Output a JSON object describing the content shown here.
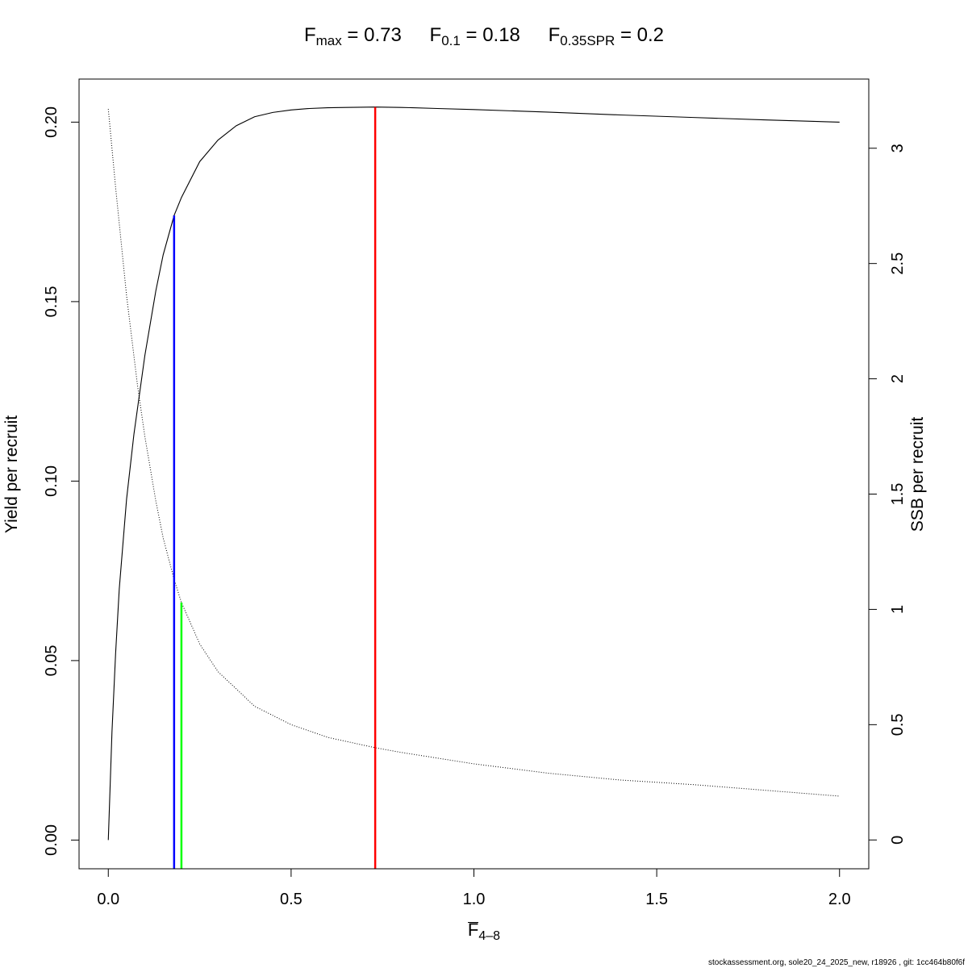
{
  "title": {
    "terms": [
      {
        "symbol": "F",
        "sub": "max",
        "value": "0.73"
      },
      {
        "symbol": "F",
        "sub": "0.1",
        "value": "0.18"
      },
      {
        "symbol": "F",
        "sub": "0.35SPR",
        "value": "0.2"
      }
    ]
  },
  "footer": "stockassessment.org, sole20_24_2025_new, r18926 , git: 1cc464b80f6f",
  "chart_data": {
    "type": "line",
    "xlabel": {
      "symbol": "F",
      "sub": "4–8"
    },
    "ylabel_left": "Yield per recruit",
    "ylabel_right": "SSB per recruit",
    "xlim": [
      -0.08,
      2.08
    ],
    "ylim_left": [
      -0.008,
      0.212
    ],
    "ylim_right": [
      -0.125,
      3.3
    ],
    "x_ticks": [
      "0.0",
      "0.5",
      "1.0",
      "1.5",
      "2.0"
    ],
    "y_left_ticks": [
      "0.00",
      "0.05",
      "0.10",
      "0.15",
      "0.20"
    ],
    "y_right_ticks": [
      "0",
      "0.5",
      "1",
      "1.5",
      "2",
      "2.5",
      "3"
    ],
    "series": [
      {
        "axis": "left",
        "style": "solid",
        "color": "#000000",
        "x": [
          0,
          0.01,
          0.02,
          0.03,
          0.05,
          0.07,
          0.1,
          0.13,
          0.15,
          0.18,
          0.2,
          0.25,
          0.3,
          0.35,
          0.4,
          0.45,
          0.5,
          0.55,
          0.6,
          0.65,
          0.73,
          0.8,
          0.9,
          1.0,
          1.2,
          1.4,
          1.6,
          1.8,
          2.0
        ],
        "y": [
          0.0,
          0.03,
          0.052,
          0.07,
          0.095,
          0.113,
          0.135,
          0.153,
          0.163,
          0.174,
          0.179,
          0.189,
          0.195,
          0.199,
          0.2015,
          0.2027,
          0.2034,
          0.2038,
          0.204,
          0.2041,
          0.2042,
          0.2041,
          0.2038,
          0.2035,
          0.2028,
          0.202,
          0.2013,
          0.2006,
          0.2
        ]
      },
      {
        "axis": "right",
        "style": "dotted",
        "color": "#000000",
        "x": [
          0,
          0.02,
          0.05,
          0.08,
          0.1,
          0.13,
          0.15,
          0.18,
          0.2,
          0.25,
          0.3,
          0.4,
          0.5,
          0.6,
          0.73,
          0.8,
          1.0,
          1.2,
          1.4,
          1.6,
          1.8,
          2.0
        ],
        "y": [
          3.17,
          2.83,
          2.36,
          1.97,
          1.75,
          1.47,
          1.31,
          1.13,
          1.03,
          0.85,
          0.73,
          0.58,
          0.5,
          0.445,
          0.4,
          0.38,
          0.33,
          0.29,
          0.26,
          0.24,
          0.215,
          0.19
        ]
      }
    ],
    "reference_lines": [
      {
        "name": "Fmax",
        "x": 0.73,
        "y_top_left": 0.2042,
        "color": "#ff0000"
      },
      {
        "name": "F0.1",
        "x": 0.18,
        "y_top_left": 0.174,
        "color": "#0000ff"
      },
      {
        "name": "F0.35SPR",
        "x": 0.2,
        "y_top_right": 1.03,
        "color": "#00ff00"
      }
    ]
  }
}
